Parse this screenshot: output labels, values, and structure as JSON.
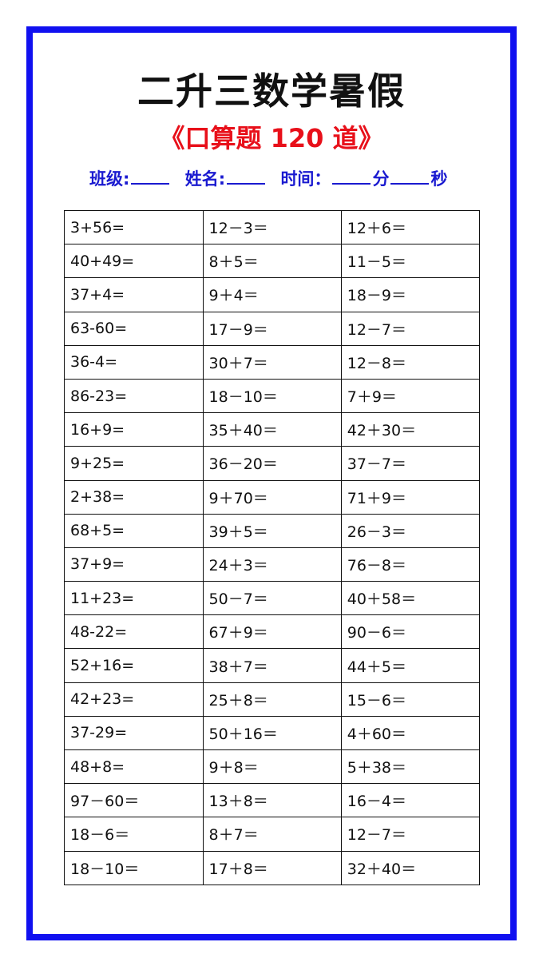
{
  "title": "二升三数学暑假",
  "subtitle": "《口算题 120 道》",
  "info": {
    "class_label": "班级:",
    "name_label": "姓名:",
    "time_label": "时间：",
    "minute_label": "分",
    "second_label": "秒"
  },
  "colors": {
    "border": "#1010f0",
    "subtitle": "#e8101a",
    "info": "#1a1ad0"
  },
  "rows": [
    [
      "3+56=",
      "12－3＝",
      "12＋6＝"
    ],
    [
      "40+49=",
      "8＋5＝",
      "11－5＝"
    ],
    [
      "37+4=",
      "9＋4＝",
      "18－9＝"
    ],
    [
      "63-60=",
      "17－9＝",
      "12－7＝"
    ],
    [
      "36-4=",
      "30＋7＝",
      "12－8＝"
    ],
    [
      "86-23=",
      "18－10＝",
      "7＋9＝"
    ],
    [
      "16+9=",
      "35＋40＝",
      "42＋30＝"
    ],
    [
      "9+25=",
      "36－20＝",
      "37－7＝"
    ],
    [
      "2+38=",
      "9＋70＝",
      "71＋9＝"
    ],
    [
      "68+5=",
      "39＋5＝",
      "26－3＝"
    ],
    [
      "37+9=",
      "24＋3＝",
      "76－8＝"
    ],
    [
      "11+23=",
      "50－7＝",
      "40＋58＝"
    ],
    [
      "48-22=",
      "67＋9＝",
      "90－6＝"
    ],
    [
      "52+16=",
      "38＋7＝",
      "44＋5＝"
    ],
    [
      "42+23=",
      "25＋8＝",
      "15－6＝"
    ],
    [
      "37-29=",
      "50＋16＝",
      "4＋60＝"
    ],
    [
      "48+8=",
      "9＋8＝",
      "5＋38＝"
    ],
    [
      "97－60＝",
      "13＋8＝",
      "16－4＝"
    ],
    [
      "18－6＝",
      "8＋7＝",
      "12－7＝"
    ],
    [
      "18－10＝",
      "17＋8＝",
      "32＋40＝"
    ]
  ]
}
